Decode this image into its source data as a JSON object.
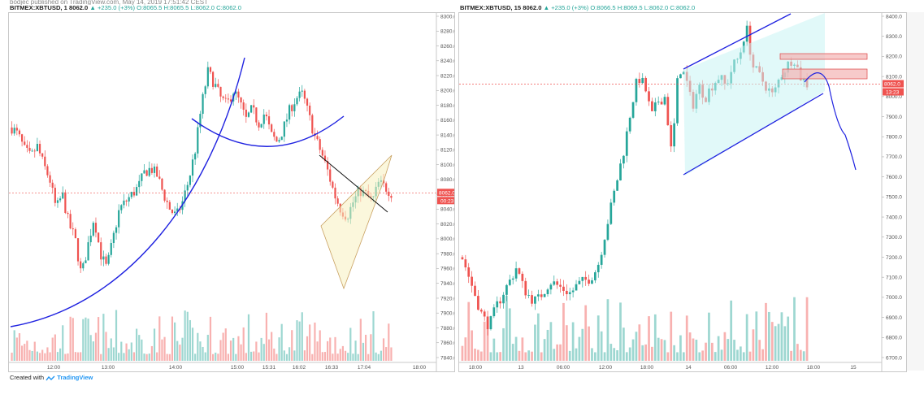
{
  "topline": "bodjec published on TradingView.com, May 14, 2019 17:51:42 CEST",
  "footer": {
    "created_with": "Created with",
    "brand": "TradingView"
  },
  "colors": {
    "up": "#26a69a",
    "down": "#ef5350",
    "price_line": "#ef5350",
    "trend": "#1f22e0"
  },
  "chart_data": [
    {
      "type": "candlestick",
      "header": {
        "symbol": "BITMEX:XBTUSD, 1",
        "last": "8062.0",
        "change": "▲ +235.0 (+3%)",
        "ohlc": [
          "O:8065.5",
          "H:8065.5",
          "L:8062.0",
          "C:8062.0"
        ]
      },
      "y_ticks": [
        "8300.0",
        "8280.0",
        "8260.0",
        "8240.0",
        "8220.0",
        "8200.0",
        "8180.0",
        "8160.0",
        "8140.0",
        "8120.0",
        "8100.0",
        "8080.0",
        "8060.0",
        "8040.0",
        "8020.0",
        "8000.0",
        "7980.0",
        "7960.0",
        "7940.0",
        "7920.0",
        "7900.0",
        "7880.0",
        "7860.0",
        "7840.0"
      ],
      "ylim": [
        7840,
        8300
      ],
      "x_ticks": [
        "12:00",
        "13:00",
        "14:00",
        "15:00",
        "15:31",
        "16:02",
        "16:33",
        "17:04",
        "18:00"
      ],
      "price_label": "8062.0",
      "countdown_label": "00:23",
      "last_price": 8062,
      "close_path": [
        8150,
        8140,
        8120,
        8110,
        8125,
        8100,
        8080,
        8040,
        8060,
        8020,
        8000,
        7950,
        7990,
        8030,
        7980,
        7960,
        8000,
        8040,
        8050,
        8060,
        8070,
        8090,
        8095,
        8085,
        8060,
        8040,
        8030,
        8050,
        8080,
        8120,
        8180,
        8225,
        8210,
        8190,
        8180,
        8200,
        8185,
        8160,
        8175,
        8155,
        8170,
        8140,
        8130,
        8150,
        8175,
        8190,
        8195,
        8165,
        8135,
        8115,
        8090,
        8060,
        8040,
        8030,
        8050,
        8065,
        8060,
        8050,
        8075,
        8070,
        8062
      ],
      "overlays": [
        "uptrend-curve",
        "rounding-bottom-arc",
        "rising-wedge",
        "wedge-breakline"
      ]
    },
    {
      "type": "candlestick",
      "header": {
        "symbol": "BITMEX:XBTUSD, 15",
        "last": "8062.0",
        "change": "▲ +235.0 (+3%)",
        "ohlc": [
          "O:8066.5",
          "H:8069.5",
          "L:8062.0",
          "C:8062.0"
        ]
      },
      "y_ticks": [
        "8400.0",
        "8300.0",
        "8200.0",
        "8100.0",
        "8000.0",
        "7900.0",
        "7800.0",
        "7700.0",
        "7600.0",
        "7500.0",
        "7400.0",
        "7300.0",
        "7200.0",
        "7100.0",
        "7000.0",
        "6900.0",
        "6800.0",
        "6700.0"
      ],
      "ylim": [
        6700,
        8400
      ],
      "x_ticks": [
        "18:00",
        "13",
        "06:00",
        "12:00",
        "18:00",
        "14",
        "06:00",
        "12:00",
        "18:00",
        "15"
      ],
      "price_label": "8062.0",
      "countdown_label": "13:23",
      "last_price": 8062,
      "close_path": [
        7200,
        7100,
        7000,
        6900,
        6860,
        6950,
        7020,
        7080,
        7150,
        7050,
        7000,
        6980,
        7030,
        7080,
        7060,
        7040,
        7020,
        7060,
        7080,
        7100,
        7150,
        7300,
        7450,
        7600,
        7750,
        7950,
        8100,
        8050,
        7900,
        7980,
        8000,
        7700,
        8150,
        8100,
        7950,
        8050,
        8000,
        8060,
        8100,
        8050,
        8150,
        8200,
        8350,
        8150,
        8100,
        8050,
        8000,
        8100,
        8150,
        8200,
        8100,
        8062
      ],
      "overlays": [
        "ascending-channel",
        "resistance-zones",
        "projection-path"
      ]
    }
  ]
}
